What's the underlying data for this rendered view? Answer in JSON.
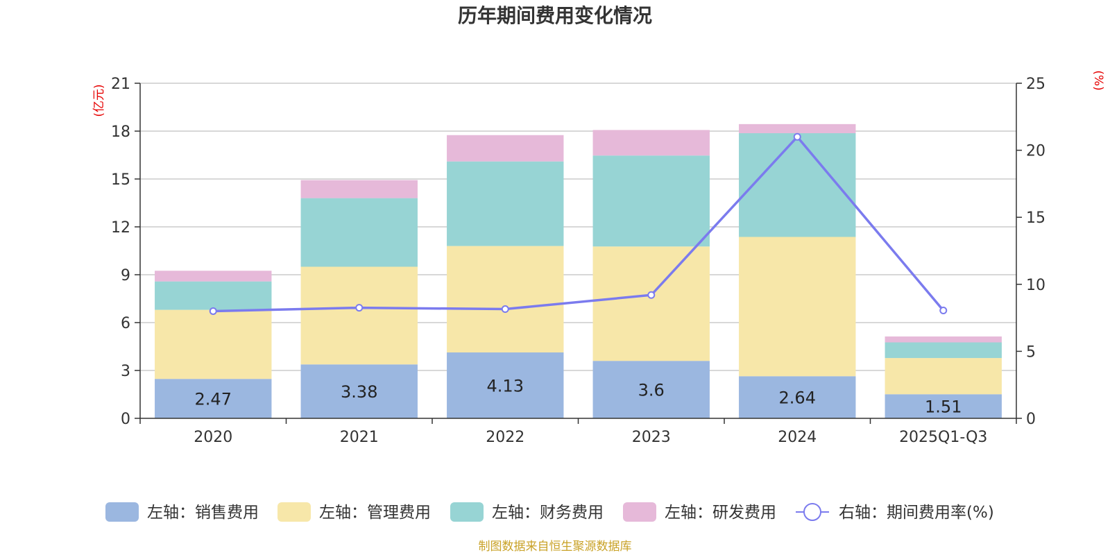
{
  "chart_data": {
    "type": "bar",
    "stacked": true,
    "title": "历年期间费用变化情况",
    "categories": [
      "2020",
      "2021",
      "2022",
      "2023",
      "2024",
      "2025Q1-Q3"
    ],
    "left_axis": {
      "unit": "(亿元)",
      "ylim": [
        0,
        21
      ],
      "ticks": [
        "0",
        "3",
        "6",
        "9",
        "12",
        "15",
        "18",
        "21"
      ]
    },
    "right_axis": {
      "unit": "(%)",
      "ylim": [
        0,
        25
      ],
      "ticks": [
        "0",
        "5",
        "10",
        "15",
        "20",
        "25"
      ]
    },
    "series": [
      {
        "name": "左轴：销售费用",
        "axis": "left",
        "color": "#9bb7e0",
        "values": [
          2.47,
          3.38,
          4.13,
          3.6,
          2.64,
          1.51
        ],
        "labels": [
          "2.47",
          "3.38",
          "4.13",
          "3.6",
          "2.64",
          "1.51"
        ]
      },
      {
        "name": "左轴：管理费用",
        "axis": "left",
        "color": "#f7e7a9",
        "values": [
          4.33,
          6.12,
          6.67,
          7.17,
          8.73,
          2.27
        ]
      },
      {
        "name": "左轴：财务费用",
        "axis": "left",
        "color": "#97d4d4",
        "values": [
          1.78,
          4.3,
          5.3,
          5.7,
          6.5,
          0.98
        ]
      },
      {
        "name": "左轴：研发费用",
        "axis": "left",
        "color": "#e6b9d9",
        "values": [
          0.67,
          1.13,
          1.65,
          1.6,
          0.57,
          0.37
        ]
      }
    ],
    "line": {
      "name": "右轴：期间费用率(%)",
      "axis": "right",
      "color": "#7b7bee",
      "values": [
        8.0,
        8.25,
        8.15,
        9.2,
        21.0,
        8.05
      ]
    },
    "grid": true,
    "legend_position": "bottom"
  },
  "source_note": "制图数据来自恒生聚源数据库"
}
